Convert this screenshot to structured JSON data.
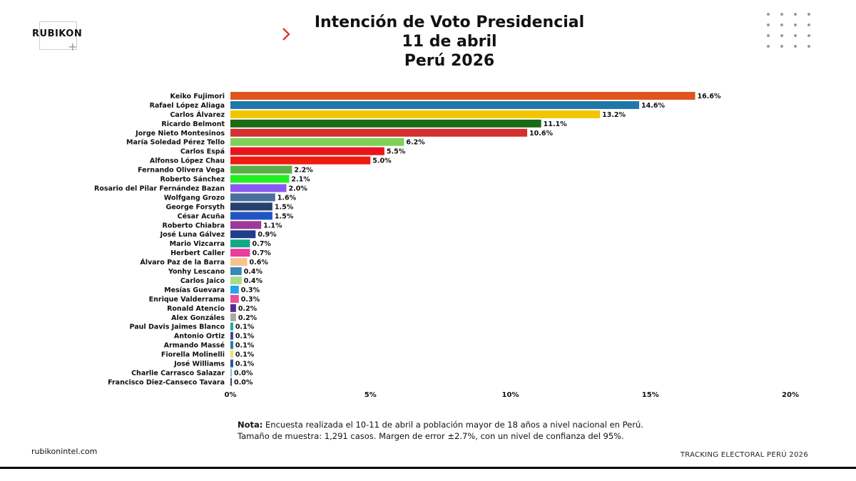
{
  "brand": {
    "name": "RUBIKON",
    "site": "rubikonintel.com",
    "tracking": "TRACKING ELECTORAL PERÚ 2026"
  },
  "title": {
    "line1": "Intención de Voto Presidencial",
    "line2": "11 de abril",
    "line3": "Perú 2026"
  },
  "note": {
    "label": "Nota:",
    "text1": " Encuesta realizada el 10-11 de abril a población mayor de 18 años a nivel nacional en Perú.",
    "text2": "Tamaño de muestra: 1,291 casos. Margen de error ±2.7%, con un nivel de confianza del 95%."
  },
  "colors": {
    "chevron": "#e0251b",
    "text": "#111111"
  },
  "icons": {
    "chevron": "chevron-right-icon",
    "dots": "dot-grid-icon",
    "plus": "plus-icon"
  },
  "chart_data": {
    "type": "bar",
    "orientation": "horizontal",
    "xlim": [
      0,
      20
    ],
    "xticks": [
      "0%",
      "5%",
      "10%",
      "15%",
      "20%"
    ],
    "xtick_values": [
      0,
      5,
      10,
      15,
      20
    ],
    "grid": false,
    "categories": [
      "Keiko Fujimori",
      "Rafael López Aliaga",
      "Carlos Álvarez",
      "Ricardo Belmont",
      "Jorge Nieto Montesinos",
      "María Soledad Pérez Tello",
      "Carlos Espá",
      "Alfonso López Chau",
      "Fernando Olivera Vega",
      "Roberto Sánchez",
      "Rosario del Pilar Fernández Bazan",
      "Wolfgang Grozo",
      "George Forsyth",
      "César Acuña",
      "Roberto Chiabra",
      "José Luna Gálvez",
      "Mario Vizcarra",
      "Herbert Caller",
      "Álvaro Paz de la Barra",
      "Yonhy Lescano",
      "Carlos Jaico",
      "Mesías Guevara",
      "Enrique Valderrama",
      "Ronald Atencio",
      "Alex Gonzáles",
      "Paul Davis Jaimes Blanco",
      "Antonio Ortiz",
      "Armando Massé",
      "Fiorella Molinelli",
      "José Williams",
      "Charlie Carrasco Salazar",
      "Francisco Diez-Canseco Tavara"
    ],
    "values": [
      16.6,
      14.6,
      13.2,
      11.1,
      10.6,
      6.2,
      5.5,
      5.0,
      2.2,
      2.1,
      2.0,
      1.6,
      1.5,
      1.5,
      1.1,
      0.9,
      0.7,
      0.7,
      0.6,
      0.4,
      0.4,
      0.3,
      0.3,
      0.2,
      0.2,
      0.1,
      0.1,
      0.1,
      0.1,
      0.1,
      0.0,
      0.0
    ],
    "value_labels": [
      "16.6%",
      "14.6%",
      "13.2%",
      "11.1%",
      "10.6%",
      "6.2%",
      "5.5%",
      "5.0%",
      "2.2%",
      "2.1%",
      "2.0%",
      "1.6%",
      "1.5%",
      "1.5%",
      "1.1%",
      "0.9%",
      "0.7%",
      "0.7%",
      "0.6%",
      "0.4%",
      "0.4%",
      "0.3%",
      "0.3%",
      "0.2%",
      "0.2%",
      "0.1%",
      "0.1%",
      "0.1%",
      "0.1%",
      "0.1%",
      "0.0%",
      "0.0%"
    ],
    "bar_colors": [
      "#e0541e",
      "#1f77a8",
      "#f2c500",
      "#1a6a14",
      "#d62f2f",
      "#7fd05a",
      "#e8141a",
      "#ef1c10",
      "#58b044",
      "#22ee22",
      "#8a58f0",
      "#4a6ea0",
      "#28406e",
      "#2255c4",
      "#9b3a9b",
      "#1f3f8a",
      "#14a884",
      "#e83e9e",
      "#f8c28c",
      "#3a86b8",
      "#a8dc8a",
      "#24a4ec",
      "#ec4c98",
      "#5a2a8a",
      "#a8a8a8",
      "#24a49a",
      "#3a4a9a",
      "#2a7aa4",
      "#e4e07a",
      "#1f5a9a",
      "#8ab4d8",
      "#4a3a7a"
    ]
  }
}
